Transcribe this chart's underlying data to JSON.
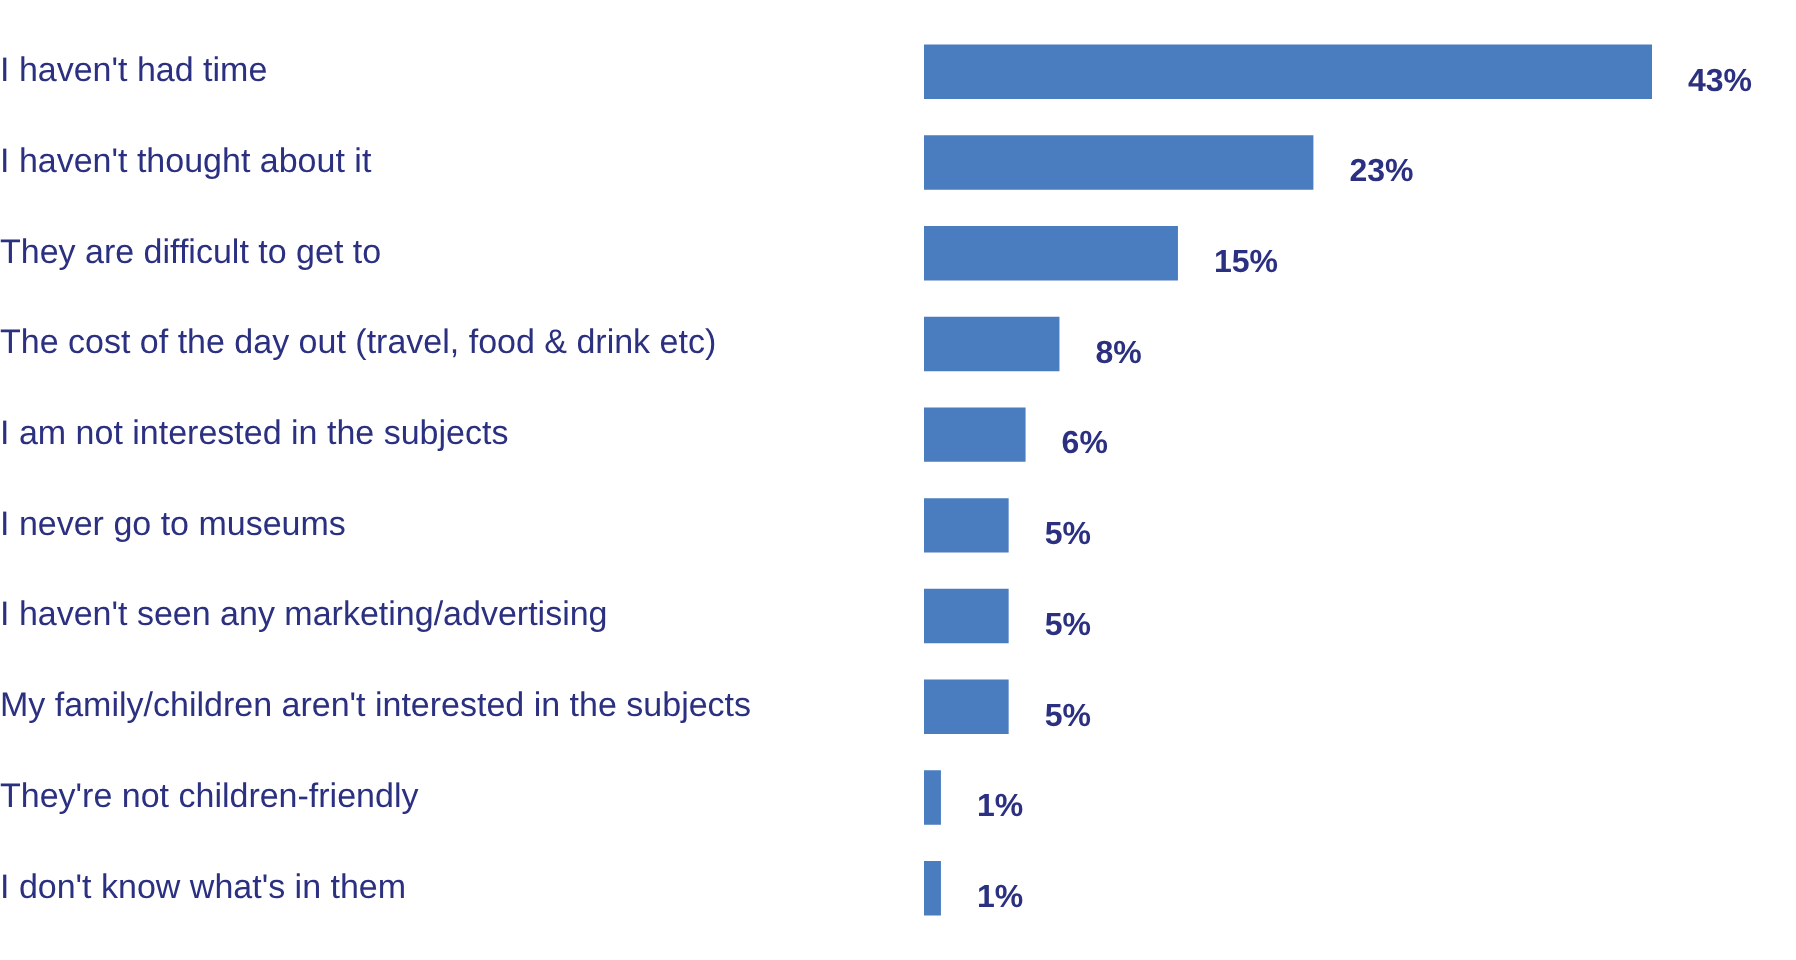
{
  "chart_data": {
    "type": "bar",
    "orientation": "horizontal",
    "categories": [
      "I haven't had time",
      "I haven't thought about it",
      "They are difficult to get to",
      "The cost of the day out (travel, food & drink etc)",
      "I am not interested in the subjects",
      "I never go to museums",
      "I haven't seen any marketing/advertising",
      "My family/children aren't interested in the subjects",
      "They're not children-friendly",
      "I don't know what's in them"
    ],
    "values": [
      43,
      23,
      15,
      8,
      6,
      5,
      5,
      5,
      1,
      1
    ],
    "value_labels": [
      "43%",
      "23%",
      "15%",
      "8%",
      "6%",
      "5%",
      "5%",
      "5%",
      "1%",
      "1%"
    ],
    "color": "#4a7cc0",
    "grid": false,
    "legend": false,
    "tick_labels": "y"
  }
}
